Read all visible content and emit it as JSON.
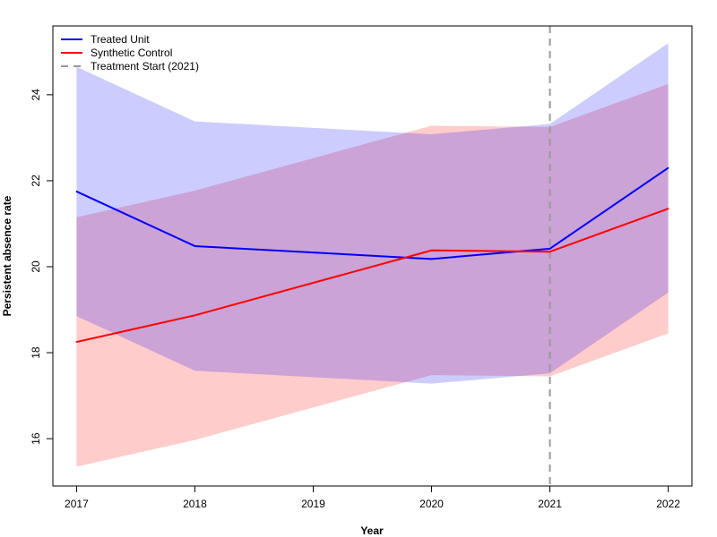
{
  "chart_data": {
    "type": "line",
    "title": "",
    "xlabel": "Year",
    "ylabel": "Persistent absence rate",
    "x": [
      2017,
      2018,
      2020,
      2021,
      2022
    ],
    "xticks": [
      2017,
      2018,
      2019,
      2020,
      2021,
      2022
    ],
    "xticklabels": [
      "2017",
      "2018",
      "2019",
      "2020",
      "2021",
      "2022"
    ],
    "yticks": [
      16,
      18,
      20,
      22,
      24
    ],
    "yticklabels": [
      "16",
      "18",
      "20",
      "22",
      "24"
    ],
    "xlim": [
      2016.8,
      2022.2
    ],
    "ylim": [
      14.9,
      25.6
    ],
    "grid": false,
    "legend_position": "top-left",
    "series": [
      {
        "name": "Treated Unit",
        "color": "#0000ff",
        "band_color": "#0000ff",
        "values": [
          21.75,
          20.48,
          20.18,
          20.42,
          22.3
        ],
        "lower": [
          18.85,
          17.58,
          17.28,
          17.52,
          19.4
        ],
        "upper": [
          24.65,
          23.38,
          23.08,
          23.32,
          25.2
        ]
      },
      {
        "name": "Synthetic Control",
        "color": "#ff0000",
        "band_color": "#ff0000",
        "values": [
          18.25,
          18.87,
          20.38,
          20.35,
          21.35
        ],
        "lower": [
          15.35,
          15.97,
          17.48,
          17.45,
          18.45
        ],
        "upper": [
          21.15,
          21.77,
          23.28,
          23.25,
          24.25
        ]
      }
    ],
    "annotations": [
      {
        "type": "vline",
        "x": 2021,
        "label": "Treatment Start (2021)",
        "color": "#999999",
        "style": "dashed"
      }
    ]
  }
}
